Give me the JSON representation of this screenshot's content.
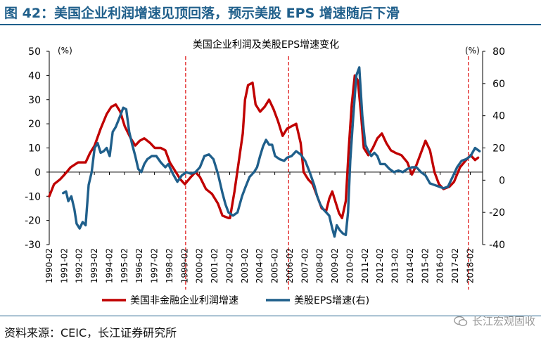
{
  "header": {
    "figure_title": "图 42：美国企业利润增速见顶回落，预示美股 EPS 增速随后下滑"
  },
  "footer": {
    "source": "资料来源：CEIC，长江证券研究所",
    "watermark": "长江宏观固收"
  },
  "colors": {
    "title": "#1f5f8b",
    "red_series": "#c00000",
    "blue_series": "#1f5f8b",
    "marker": "#e02020",
    "axis": "#000000"
  },
  "chart_data": {
    "type": "line",
    "title": "美国企业利润及美股EPS增速变化",
    "left_unit": "(%)",
    "right_unit": "(%)",
    "ylim_left": [
      -30,
      50
    ],
    "ylim_right": [
      -40,
      80
    ],
    "yticks_left": [
      -30,
      -20,
      -10,
      0,
      10,
      20,
      30,
      40,
      50
    ],
    "yticks_right": [
      -40,
      -20,
      0,
      20,
      40,
      60,
      80
    ],
    "xlim": [
      1990.08,
      2018.9
    ],
    "x_tick_labels": [
      "1990-02",
      "1991-02",
      "1992-02",
      "1993-02",
      "1994-02",
      "1995-02",
      "1996-02",
      "1997-02",
      "1998-02",
      "1999-02",
      "2000-02",
      "2001-02",
      "2002-02",
      "2003-02",
      "2004-02",
      "2005-02",
      "2006-02",
      "2007-02",
      "2008-02",
      "2009-02",
      "2010-02",
      "2011-02",
      "2012-02",
      "2013-02",
      "2014-02",
      "2015-02",
      "2016-02",
      "2017-02",
      "2018-02"
    ],
    "x_tick_positions": [
      1990.08,
      1991.08,
      1992.08,
      1993.08,
      1994.08,
      1995.08,
      1996.08,
      1997.08,
      1998.08,
      1999.08,
      2000.08,
      2001.08,
      2002.08,
      2003.08,
      2004.08,
      2005.08,
      2006.08,
      2007.08,
      2008.08,
      2009.08,
      2010.08,
      2011.08,
      2012.08,
      2013.08,
      2014.08,
      2015.08,
      2016.08,
      2017.08,
      2018.08
    ],
    "vertical_markers": [
      1999.15,
      2006.0,
      2017.95
    ],
    "series": [
      {
        "name": "美国非金融企业利润增速",
        "axis": "left",
        "points": [
          [
            1990.08,
            -10
          ],
          [
            1990.4,
            -5
          ],
          [
            1990.8,
            -3
          ],
          [
            1991.1,
            -1
          ],
          [
            1991.5,
            2
          ],
          [
            1992.0,
            4
          ],
          [
            1992.5,
            4
          ],
          [
            1992.8,
            8
          ],
          [
            1993.1,
            11
          ],
          [
            1993.5,
            18
          ],
          [
            1993.9,
            24
          ],
          [
            1994.2,
            27
          ],
          [
            1994.5,
            28
          ],
          [
            1994.8,
            25
          ],
          [
            1995.1,
            19
          ],
          [
            1995.5,
            14
          ],
          [
            1995.8,
            11
          ],
          [
            1996.1,
            13
          ],
          [
            1996.4,
            14
          ],
          [
            1996.8,
            12
          ],
          [
            1997.1,
            10
          ],
          [
            1997.5,
            10
          ],
          [
            1997.8,
            9
          ],
          [
            1998.1,
            4
          ],
          [
            1998.5,
            0
          ],
          [
            1998.8,
            -3
          ],
          [
            1999.1,
            -5
          ],
          [
            1999.5,
            -2
          ],
          [
            1999.8,
            0
          ],
          [
            2000.1,
            -2
          ],
          [
            2000.5,
            -7
          ],
          [
            2000.9,
            -9
          ],
          [
            2001.3,
            -13
          ],
          [
            2001.6,
            -18
          ],
          [
            2002.0,
            -19
          ],
          [
            2002.1,
            -19
          ],
          [
            2002.4,
            -8
          ],
          [
            2002.7,
            5
          ],
          [
            2002.95,
            16
          ],
          [
            2003.1,
            30
          ],
          [
            2003.3,
            36
          ],
          [
            2003.6,
            37
          ],
          [
            2003.8,
            28
          ],
          [
            2004.1,
            25
          ],
          [
            2004.4,
            27
          ],
          [
            2004.7,
            30
          ],
          [
            2005.0,
            26
          ],
          [
            2005.3,
            21
          ],
          [
            2005.6,
            15
          ],
          [
            2005.9,
            18
          ],
          [
            2006.2,
            19
          ],
          [
            2006.5,
            20
          ],
          [
            2006.8,
            12
          ],
          [
            2007.0,
            0
          ],
          [
            2007.3,
            -3
          ],
          [
            2007.6,
            -5
          ],
          [
            2007.9,
            -10
          ],
          [
            2008.2,
            -15
          ],
          [
            2008.5,
            -16
          ],
          [
            2008.7,
            -11
          ],
          [
            2008.9,
            -8
          ],
          [
            2009.1,
            -12
          ],
          [
            2009.35,
            -17
          ],
          [
            2009.55,
            -19
          ],
          [
            2009.8,
            -12
          ],
          [
            2010.0,
            10
          ],
          [
            2010.2,
            28
          ],
          [
            2010.4,
            40
          ],
          [
            2010.6,
            38
          ],
          [
            2010.8,
            25
          ],
          [
            2011.0,
            10
          ],
          [
            2011.3,
            7
          ],
          [
            2011.6,
            10
          ],
          [
            2011.9,
            14
          ],
          [
            2012.2,
            16
          ],
          [
            2012.5,
            12
          ],
          [
            2012.8,
            9
          ],
          [
            2013.1,
            8
          ],
          [
            2013.5,
            7
          ],
          [
            2013.9,
            4
          ],
          [
            2014.2,
            -1
          ],
          [
            2014.5,
            3
          ],
          [
            2014.8,
            8
          ],
          [
            2015.1,
            13
          ],
          [
            2015.4,
            9
          ],
          [
            2015.7,
            0
          ],
          [
            2016.0,
            -5
          ],
          [
            2016.3,
            -7
          ],
          [
            2016.7,
            -6
          ],
          [
            2017.0,
            -4
          ],
          [
            2017.4,
            2
          ],
          [
            2017.8,
            5
          ],
          [
            2018.1,
            7
          ],
          [
            2018.4,
            5
          ],
          [
            2018.6,
            6
          ]
        ]
      },
      {
        "name": "美股EPS增速(右)",
        "axis": "right",
        "points": [
          [
            1991.0,
            -8
          ],
          [
            1991.2,
            -7
          ],
          [
            1991.35,
            -13
          ],
          [
            1991.55,
            -10
          ],
          [
            1991.75,
            -18
          ],
          [
            1991.9,
            -27
          ],
          [
            1992.1,
            -30
          ],
          [
            1992.3,
            -26
          ],
          [
            1992.5,
            -28
          ],
          [
            1992.7,
            -3
          ],
          [
            1992.9,
            5
          ],
          [
            1993.1,
            20
          ],
          [
            1993.3,
            23
          ],
          [
            1993.5,
            17
          ],
          [
            1993.7,
            18
          ],
          [
            1993.9,
            20
          ],
          [
            1994.1,
            15
          ],
          [
            1994.3,
            30
          ],
          [
            1994.5,
            33
          ],
          [
            1994.8,
            40
          ],
          [
            1995.0,
            45
          ],
          [
            1995.2,
            44
          ],
          [
            1995.4,
            30
          ],
          [
            1995.6,
            22
          ],
          [
            1995.8,
            15
          ],
          [
            1996.0,
            7
          ],
          [
            1996.2,
            5
          ],
          [
            1996.4,
            10
          ],
          [
            1996.6,
            13
          ],
          [
            1996.9,
            15
          ],
          [
            1997.2,
            15
          ],
          [
            1997.5,
            11
          ],
          [
            1997.8,
            8
          ],
          [
            1998.0,
            10
          ],
          [
            1998.3,
            4
          ],
          [
            1998.6,
            -1
          ],
          [
            1998.9,
            3
          ],
          [
            1999.2,
            5
          ],
          [
            1999.5,
            4
          ],
          [
            1999.8,
            5
          ],
          [
            2000.1,
            8
          ],
          [
            2000.4,
            15
          ],
          [
            2000.7,
            16
          ],
          [
            2001.0,
            13
          ],
          [
            2001.3,
            4
          ],
          [
            2001.6,
            -8
          ],
          [
            2001.8,
            -15
          ],
          [
            2002.0,
            -20
          ],
          [
            2002.3,
            -22
          ],
          [
            2002.6,
            -20
          ],
          [
            2002.9,
            -10
          ],
          [
            2003.1,
            -5
          ],
          [
            2003.4,
            2
          ],
          [
            2003.7,
            5
          ],
          [
            2003.9,
            8
          ],
          [
            2004.1,
            15
          ],
          [
            2004.3,
            21
          ],
          [
            2004.5,
            25
          ],
          [
            2004.7,
            22
          ],
          [
            2004.9,
            22
          ],
          [
            2005.1,
            15
          ],
          [
            2005.4,
            13
          ],
          [
            2005.7,
            12
          ],
          [
            2005.9,
            14
          ],
          [
            2006.2,
            15
          ],
          [
            2006.5,
            18
          ],
          [
            2006.8,
            16
          ],
          [
            2007.1,
            12
          ],
          [
            2007.4,
            5
          ],
          [
            2007.7,
            -3
          ],
          [
            2007.9,
            -10
          ],
          [
            2008.1,
            -15
          ],
          [
            2008.3,
            -18
          ],
          [
            2008.5,
            -20
          ],
          [
            2008.7,
            -22
          ],
          [
            2008.9,
            -30
          ],
          [
            2009.05,
            -35
          ],
          [
            2009.2,
            -28
          ],
          [
            2009.4,
            -31
          ],
          [
            2009.6,
            -33
          ],
          [
            2009.8,
            -34
          ],
          [
            2009.95,
            -20
          ],
          [
            2010.1,
            12
          ],
          [
            2010.3,
            40
          ],
          [
            2010.5,
            65
          ],
          [
            2010.7,
            70
          ],
          [
            2010.9,
            40
          ],
          [
            2011.1,
            22
          ],
          [
            2011.3,
            18
          ],
          [
            2011.5,
            15
          ],
          [
            2011.7,
            17
          ],
          [
            2011.9,
            15
          ],
          [
            2012.1,
            10
          ],
          [
            2012.4,
            10
          ],
          [
            2012.7,
            7
          ],
          [
            2013.0,
            5
          ],
          [
            2013.3,
            6
          ],
          [
            2013.6,
            5
          ],
          [
            2013.9,
            7
          ],
          [
            2014.2,
            8
          ],
          [
            2014.5,
            8
          ],
          [
            2014.8,
            5
          ],
          [
            2015.1,
            3
          ],
          [
            2015.4,
            -2
          ],
          [
            2015.7,
            -3
          ],
          [
            2016.0,
            -4
          ],
          [
            2016.3,
            -5
          ],
          [
            2016.6,
            -4
          ],
          [
            2016.9,
            2
          ],
          [
            2017.2,
            8
          ],
          [
            2017.5,
            12
          ],
          [
            2017.8,
            13
          ],
          [
            2018.1,
            15
          ],
          [
            2018.4,
            20
          ],
          [
            2018.7,
            18
          ]
        ]
      }
    ],
    "legend": {
      "placement": "bottom",
      "entries": [
        "美国非金融企业利润增速",
        "美股EPS增速(右)"
      ]
    }
  }
}
